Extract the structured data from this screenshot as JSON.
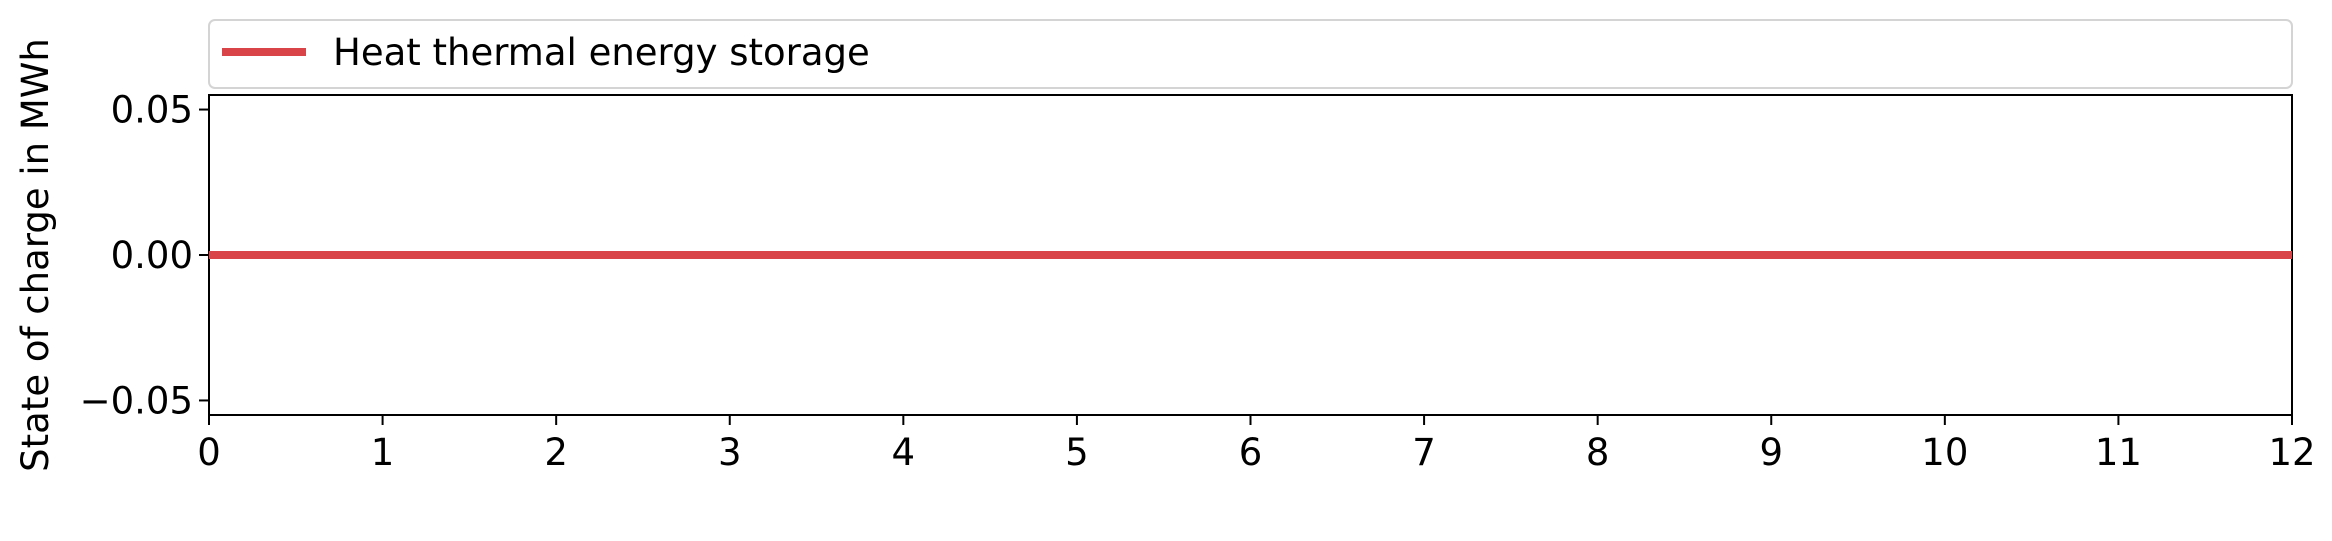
{
  "chart_data": {
    "type": "line",
    "title": "",
    "xlabel": "",
    "ylabel": "State of charge in MWh",
    "xlim": [
      0,
      12
    ],
    "ylim": [
      -0.055,
      0.055
    ],
    "xticks": [
      0,
      1,
      2,
      3,
      4,
      5,
      6,
      7,
      8,
      9,
      10,
      11,
      12
    ],
    "xtick_labels": [
      "0",
      "1",
      "2",
      "3",
      "4",
      "5",
      "6",
      "7",
      "8",
      "9",
      "10",
      "11",
      "12"
    ],
    "yticks": [
      0.05,
      0.0,
      -0.05
    ],
    "ytick_labels": [
      "0.05",
      "0.00",
      "−0.05"
    ],
    "grid": false,
    "legend_position": "top, above plot, spanning full width",
    "series": [
      {
        "name": "Heat thermal energy storage",
        "color": "#d94448",
        "x": [
          0,
          1,
          2,
          3,
          4,
          5,
          6,
          7,
          8,
          9,
          10,
          11,
          12
        ],
        "y": [
          0,
          0,
          0,
          0,
          0,
          0,
          0,
          0,
          0,
          0,
          0,
          0,
          0
        ]
      }
    ]
  }
}
